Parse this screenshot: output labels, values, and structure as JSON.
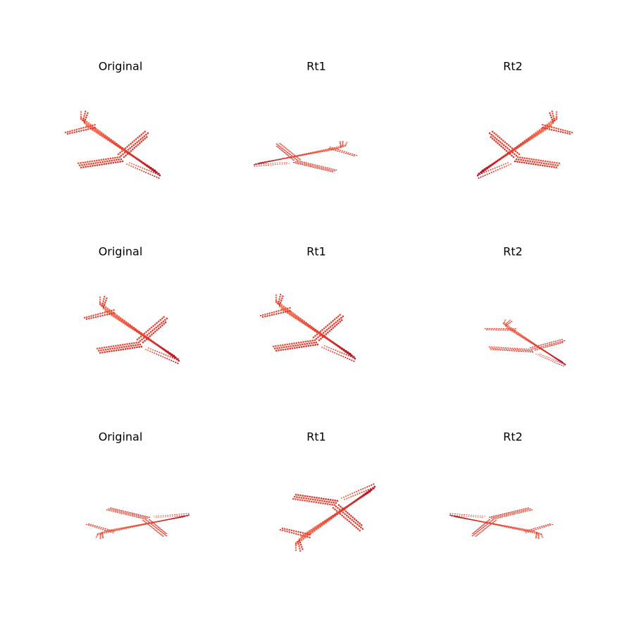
{
  "panels": [
    {
      "title": "Original"
    },
    {
      "title": "Rt1"
    },
    {
      "title": "Rt2"
    },
    {
      "title": "Original"
    },
    {
      "title": "Rt1"
    },
    {
      "title": "Rt2"
    },
    {
      "title": "Original"
    },
    {
      "title": "Rt1"
    },
    {
      "title": "Rt2"
    }
  ]
}
